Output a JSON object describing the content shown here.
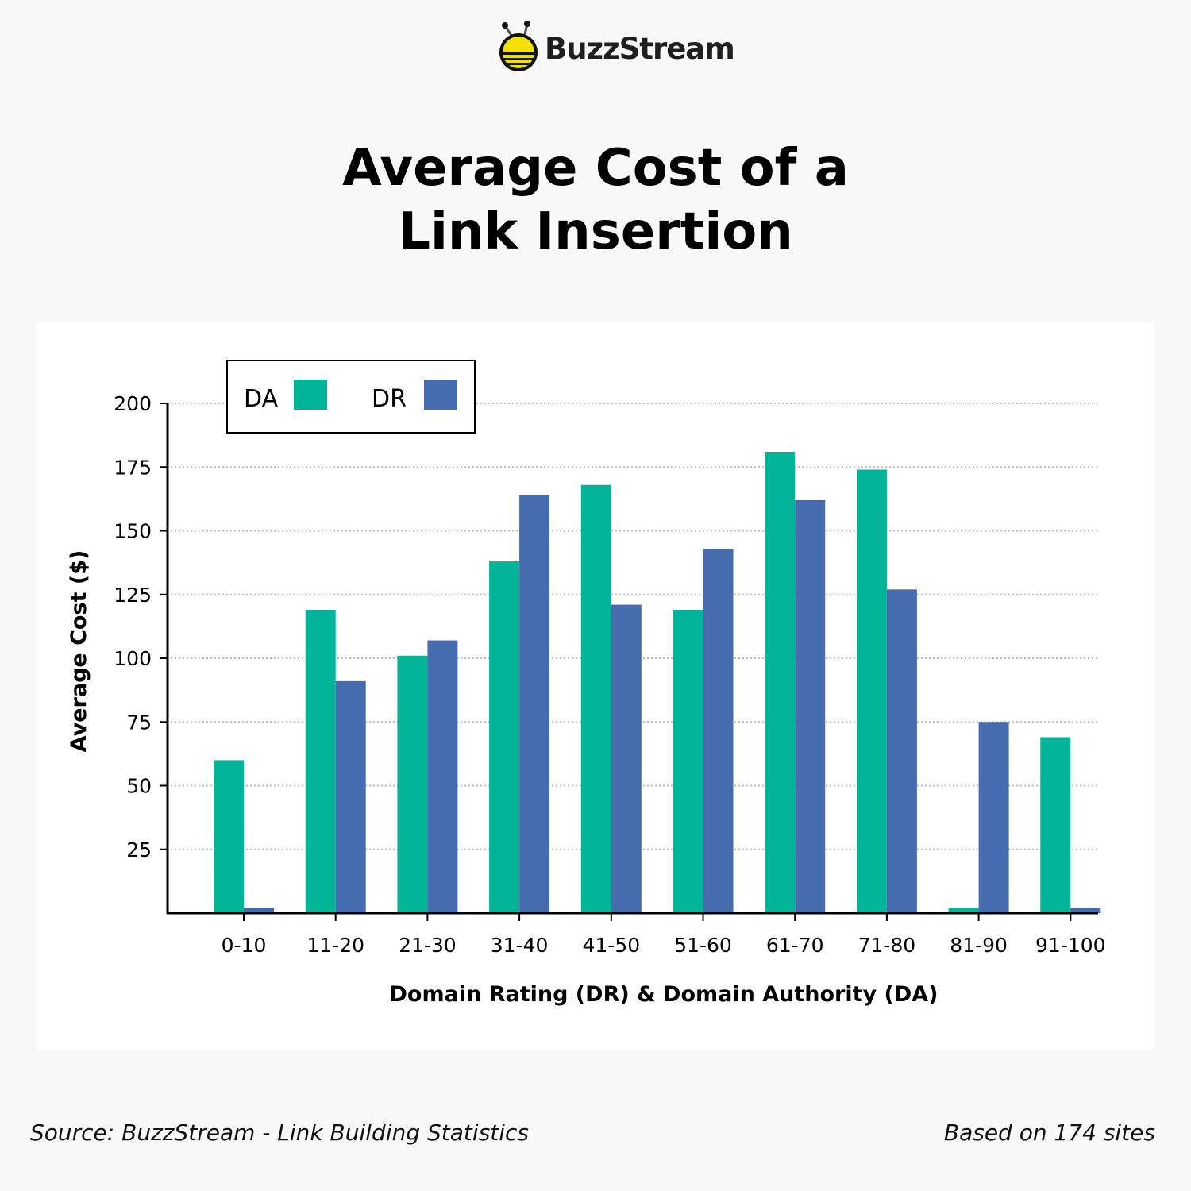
{
  "brand": {
    "name": "BuzzStream",
    "logo_icon": "bee-icon"
  },
  "footer": {
    "source": "Source: BuzzStream - Link Building Statistics",
    "note": "Based on 174 sites"
  },
  "chart_data": {
    "type": "bar",
    "title": "Average Cost of a Link Insertion",
    "title_lines": [
      "Average Cost of a",
      "Link Insertion"
    ],
    "xlabel": "Domain Rating (DR) & Domain Authority (DA)",
    "ylabel": "Average Cost ($)",
    "categories": [
      "0-10",
      "11-20",
      "21-30",
      "31-40",
      "41-50",
      "51-60",
      "61-70",
      "71-80",
      "81-90",
      "91-100"
    ],
    "series": [
      {
        "name": "DA",
        "color": "#00b597",
        "values": [
          60,
          119,
          101,
          138,
          168,
          119,
          181,
          174,
          2,
          69
        ]
      },
      {
        "name": "DR",
        "color": "#456cae",
        "values": [
          2,
          91,
          107,
          164,
          121,
          143,
          162,
          127,
          75,
          2
        ]
      }
    ],
    "ylim": [
      0,
      200
    ],
    "yticks": [
      25,
      50,
      75,
      100,
      125,
      150,
      175,
      200
    ],
    "grid": true,
    "legend_position": "top-left"
  }
}
